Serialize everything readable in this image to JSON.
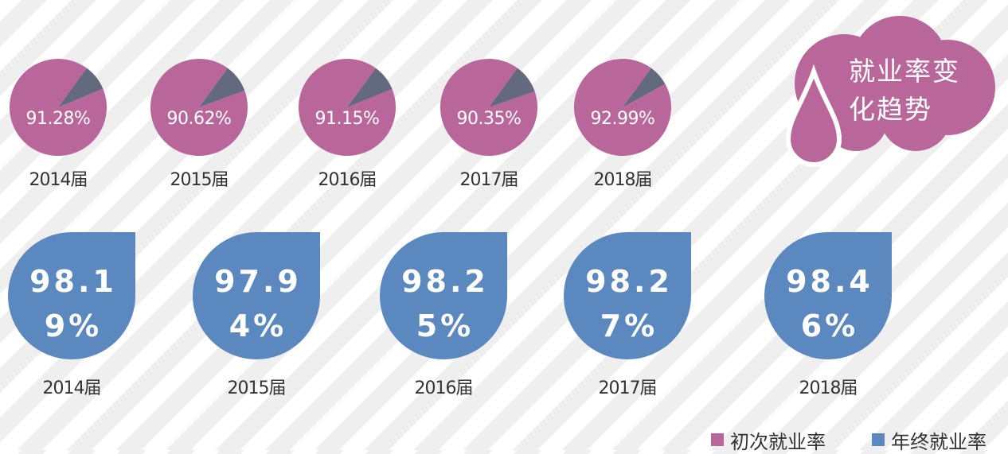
{
  "chart_data": {
    "type": "pie",
    "title": "就业率变化趋势",
    "categories": [
      "2014届",
      "2015届",
      "2016届",
      "2017届",
      "2018届"
    ],
    "series": [
      {
        "name": "初次就业率",
        "color": "#b9679a",
        "remainder_color": "#646a7e",
        "values": [
          91.28,
          90.62,
          91.15,
          90.35,
          92.99
        ],
        "value_labels": [
          "91.28%",
          "90.62%",
          "91.15%",
          "90.35%",
          "92.99%"
        ]
      },
      {
        "name": "年终就业率",
        "color": "#5b88bf",
        "values": [
          98.19,
          97.94,
          98.25,
          98.27,
          98.46
        ],
        "value_labels": [
          "98.19%",
          "97.94%",
          "98.25%",
          "98.27%",
          "98.46%"
        ]
      }
    ]
  }
}
